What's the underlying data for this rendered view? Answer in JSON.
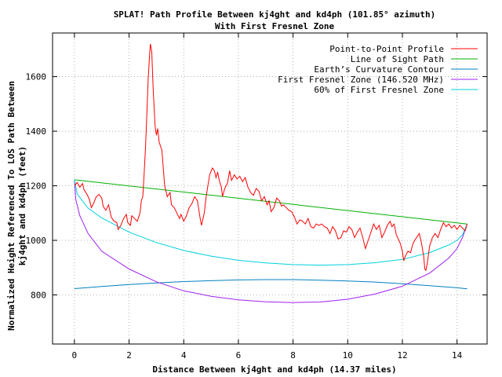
{
  "chart_data": {
    "type": "line",
    "title": "SPLAT! Path Profile Between kj4ght and kd4ph (101.85° azimuth)",
    "subtitle": "With First Fresnel Zone",
    "xlabel": "Distance Between kj4ght and kd4ph (14.37 miles)",
    "ylabel_line1": "Normalized Height Referenced To LOS Path Between",
    "ylabel_line2": "kj4ght and kd4ph (feet)",
    "xlim": [
      -0.8,
      15.1
    ],
    "ylim": [
      620,
      1760
    ],
    "x_ticks": [
      0,
      2,
      4,
      6,
      8,
      10,
      12,
      14
    ],
    "y_ticks": [
      800,
      1000,
      1200,
      1400,
      1600
    ],
    "grid": true,
    "legend_position": "top-right",
    "series": [
      {
        "name": "Point-to-Point Profile",
        "color": "#ff0000",
        "points": [
          [
            0.0,
            1200
          ],
          [
            0.1,
            1212
          ],
          [
            0.2,
            1195
          ],
          [
            0.3,
            1208
          ],
          [
            0.35,
            1185
          ],
          [
            0.45,
            1170
          ],
          [
            0.55,
            1150
          ],
          [
            0.62,
            1120
          ],
          [
            0.7,
            1135
          ],
          [
            0.8,
            1160
          ],
          [
            0.9,
            1168
          ],
          [
            1.0,
            1155
          ],
          [
            1.05,
            1125
          ],
          [
            1.15,
            1110
          ],
          [
            1.25,
            1130
          ],
          [
            1.35,
            1085
          ],
          [
            1.45,
            1070
          ],
          [
            1.55,
            1065
          ],
          [
            1.6,
            1040
          ],
          [
            1.7,
            1055
          ],
          [
            1.8,
            1080
          ],
          [
            1.9,
            1095
          ],
          [
            1.95,
            1065
          ],
          [
            2.05,
            1055
          ],
          [
            2.1,
            1090
          ],
          [
            2.2,
            1080
          ],
          [
            2.3,
            1070
          ],
          [
            2.4,
            1100
          ],
          [
            2.45,
            1145
          ],
          [
            2.5,
            1160
          ],
          [
            2.55,
            1240
          ],
          [
            2.6,
            1340
          ],
          [
            2.65,
            1460
          ],
          [
            2.7,
            1590
          ],
          [
            2.75,
            1680
          ],
          [
            2.78,
            1720
          ],
          [
            2.83,
            1690
          ],
          [
            2.88,
            1560
          ],
          [
            2.95,
            1420
          ],
          [
            3.0,
            1385
          ],
          [
            3.05,
            1410
          ],
          [
            3.1,
            1360
          ],
          [
            3.2,
            1330
          ],
          [
            3.3,
            1200
          ],
          [
            3.4,
            1160
          ],
          [
            3.5,
            1175
          ],
          [
            3.55,
            1130
          ],
          [
            3.65,
            1120
          ],
          [
            3.75,
            1100
          ],
          [
            3.85,
            1080
          ],
          [
            3.9,
            1095
          ],
          [
            4.0,
            1070
          ],
          [
            4.1,
            1090
          ],
          [
            4.2,
            1120
          ],
          [
            4.3,
            1135
          ],
          [
            4.4,
            1160
          ],
          [
            4.5,
            1145
          ],
          [
            4.6,
            1080
          ],
          [
            4.65,
            1055
          ],
          [
            4.75,
            1100
          ],
          [
            4.82,
            1160
          ],
          [
            4.9,
            1210
          ],
          [
            4.95,
            1240
          ],
          [
            5.05,
            1265
          ],
          [
            5.12,
            1255
          ],
          [
            5.18,
            1230
          ],
          [
            5.24,
            1250
          ],
          [
            5.3,
            1220
          ],
          [
            5.38,
            1195
          ],
          [
            5.42,
            1160
          ],
          [
            5.5,
            1190
          ],
          [
            5.6,
            1210
          ],
          [
            5.68,
            1255
          ],
          [
            5.75,
            1220
          ],
          [
            5.85,
            1240
          ],
          [
            5.95,
            1225
          ],
          [
            6.05,
            1235
          ],
          [
            6.15,
            1215
          ],
          [
            6.25,
            1230
          ],
          [
            6.35,
            1195
          ],
          [
            6.45,
            1175
          ],
          [
            6.55,
            1165
          ],
          [
            6.65,
            1190
          ],
          [
            6.75,
            1180
          ],
          [
            6.85,
            1145
          ],
          [
            6.95,
            1160
          ],
          [
            7.05,
            1130
          ],
          [
            7.12,
            1145
          ],
          [
            7.2,
            1105
          ],
          [
            7.3,
            1120
          ],
          [
            7.4,
            1155
          ],
          [
            7.5,
            1145
          ],
          [
            7.58,
            1125
          ],
          [
            7.65,
            1130
          ],
          [
            7.75,
            1120
          ],
          [
            7.85,
            1110
          ],
          [
            7.95,
            1105
          ],
          [
            8.05,
            1085
          ],
          [
            8.15,
            1060
          ],
          [
            8.25,
            1075
          ],
          [
            8.35,
            1070
          ],
          [
            8.45,
            1060
          ],
          [
            8.55,
            1080
          ],
          [
            8.65,
            1050
          ],
          [
            8.75,
            1045
          ],
          [
            8.85,
            1060
          ],
          [
            8.95,
            1055
          ],
          [
            9.05,
            1060
          ],
          [
            9.15,
            1050
          ],
          [
            9.25,
            1045
          ],
          [
            9.35,
            1025
          ],
          [
            9.45,
            1050
          ],
          [
            9.55,
            1035
          ],
          [
            9.65,
            1005
          ],
          [
            9.75,
            1010
          ],
          [
            9.85,
            1035
          ],
          [
            9.95,
            1030
          ],
          [
            10.05,
            1050
          ],
          [
            10.15,
            1040
          ],
          [
            10.25,
            1010
          ],
          [
            10.35,
            1030
          ],
          [
            10.45,
            1045
          ],
          [
            10.55,
            1010
          ],
          [
            10.65,
            970
          ],
          [
            10.75,
            1000
          ],
          [
            10.85,
            1030
          ],
          [
            10.95,
            1060
          ],
          [
            11.05,
            1040
          ],
          [
            11.15,
            1055
          ],
          [
            11.25,
            1010
          ],
          [
            11.35,
            1030
          ],
          [
            11.45,
            1055
          ],
          [
            11.55,
            1070
          ],
          [
            11.62,
            1050
          ],
          [
            11.7,
            1060
          ],
          [
            11.78,
            1020
          ],
          [
            11.85,
            1005
          ],
          [
            11.92,
            990
          ],
          [
            12.0,
            960
          ],
          [
            12.05,
            925
          ],
          [
            12.1,
            940
          ],
          [
            12.2,
            960
          ],
          [
            12.3,
            955
          ],
          [
            12.38,
            985
          ],
          [
            12.45,
            1000
          ],
          [
            12.55,
            1015
          ],
          [
            12.62,
            1025
          ],
          [
            12.7,
            990
          ],
          [
            12.78,
            940
          ],
          [
            12.82,
            895
          ],
          [
            12.86,
            890
          ],
          [
            12.92,
            920
          ],
          [
            13.0,
            980
          ],
          [
            13.1,
            1010
          ],
          [
            13.2,
            1025
          ],
          [
            13.3,
            1010
          ],
          [
            13.4,
            1040
          ],
          [
            13.5,
            1065
          ],
          [
            13.6,
            1050
          ],
          [
            13.7,
            1060
          ],
          [
            13.8,
            1045
          ],
          [
            13.9,
            1055
          ],
          [
            14.0,
            1040
          ],
          [
            14.1,
            1055
          ],
          [
            14.2,
            1045
          ],
          [
            14.3,
            1035
          ],
          [
            14.37,
            1060
          ]
        ]
      },
      {
        "name": "Line of Sight Path",
        "color": "#00b000",
        "points": [
          [
            0.0,
            1222
          ],
          [
            14.37,
            1060
          ]
        ]
      },
      {
        "name": "Earth’s Curvature Contour",
        "color": "#0080c0",
        "points": [
          [
            0.0,
            823
          ],
          [
            1.0,
            831
          ],
          [
            2.0,
            838
          ],
          [
            3.0,
            844
          ],
          [
            4.0,
            849
          ],
          [
            5.0,
            852
          ],
          [
            6.0,
            855
          ],
          [
            7.0,
            856
          ],
          [
            8.0,
            856
          ],
          [
            9.0,
            854
          ],
          [
            10.0,
            851
          ],
          [
            11.0,
            847
          ],
          [
            12.0,
            841
          ],
          [
            13.0,
            834
          ],
          [
            14.0,
            826
          ],
          [
            14.37,
            822
          ]
        ]
      },
      {
        "name": "First Fresnel Zone (146.520 MHz)",
        "color": "#a020f0",
        "points": [
          [
            0.0,
            1222
          ],
          [
            0.05,
            1150
          ],
          [
            0.2,
            1090
          ],
          [
            0.5,
            1025
          ],
          [
            1.0,
            960
          ],
          [
            2.0,
            895
          ],
          [
            3.0,
            848
          ],
          [
            4.0,
            815
          ],
          [
            5.0,
            795
          ],
          [
            6.0,
            782
          ],
          [
            7.0,
            775
          ],
          [
            8.0,
            772
          ],
          [
            9.0,
            774
          ],
          [
            10.0,
            784
          ],
          [
            11.0,
            803
          ],
          [
            12.0,
            832
          ],
          [
            13.0,
            880
          ],
          [
            13.7,
            935
          ],
          [
            14.0,
            970
          ],
          [
            14.2,
            1010
          ],
          [
            14.32,
            1045
          ],
          [
            14.37,
            1060
          ]
        ]
      },
      {
        "name": "60% of First Fresnel Zone",
        "color": "#00d0e0",
        "points": [
          [
            0.0,
            1222
          ],
          [
            0.1,
            1170
          ],
          [
            0.5,
            1118
          ],
          [
            1.0,
            1082
          ],
          [
            2.0,
            1030
          ],
          [
            3.0,
            992
          ],
          [
            4.0,
            963
          ],
          [
            5.0,
            942
          ],
          [
            6.0,
            927
          ],
          [
            7.0,
            917
          ],
          [
            8.0,
            911
          ],
          [
            9.0,
            909
          ],
          [
            10.0,
            911
          ],
          [
            11.0,
            918
          ],
          [
            12.0,
            930
          ],
          [
            13.0,
            955
          ],
          [
            13.7,
            983
          ],
          [
            14.0,
            1000
          ],
          [
            14.2,
            1020
          ],
          [
            14.37,
            1060
          ]
        ]
      }
    ]
  }
}
